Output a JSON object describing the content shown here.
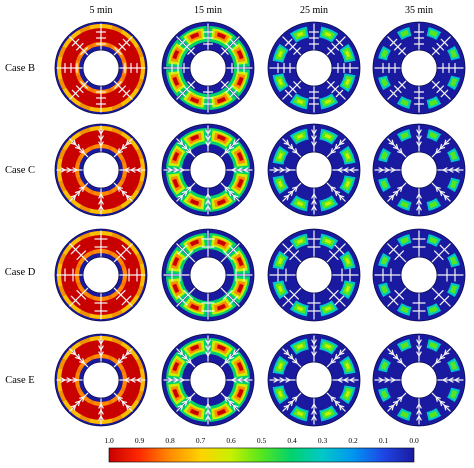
{
  "columns": [
    "5 min",
    "15 min",
    "25 min",
    "35 min"
  ],
  "rows": [
    "Case B",
    "Case C",
    "Case D",
    "Case E"
  ],
  "colorbar": {
    "ticks": [
      "1.0",
      "0.9",
      "0.8",
      "0.7",
      "0.6",
      "0.5",
      "0.4",
      "0.3",
      "0.2",
      "0.1",
      "0.0"
    ],
    "colors": [
      "#c80000",
      "#ff2a00",
      "#ff8c00",
      "#ffd200",
      "#c8f000",
      "#55e61e",
      "#00d26e",
      "#00c8c8",
      "#0096f0",
      "#1e46e6",
      "#1a1aa0"
    ]
  },
  "colors": {
    "solid": "#1a1aa0",
    "fin": "#f4f4f4",
    "inner_hole": "#ffffff"
  },
  "cells": [
    [
      {
        "fin_type": "tree",
        "melt": "early"
      },
      {
        "fin_type": "tree",
        "melt": "mid"
      },
      {
        "fin_type": "tree",
        "melt": "late"
      },
      {
        "fin_type": "tree",
        "melt": "final"
      }
    ],
    [
      {
        "fin_type": "tree-x",
        "melt": "early"
      },
      {
        "fin_type": "tree-x",
        "melt": "mid"
      },
      {
        "fin_type": "tree-x",
        "melt": "late"
      },
      {
        "fin_type": "tree-x",
        "melt": "final"
      }
    ],
    [
      {
        "fin_type": "cross",
        "melt": "early"
      },
      {
        "fin_type": "cross",
        "melt": "mid"
      },
      {
        "fin_type": "cross",
        "melt": "late"
      },
      {
        "fin_type": "cross",
        "melt": "final"
      }
    ],
    [
      {
        "fin_type": "tree-x",
        "melt": "early"
      },
      {
        "fin_type": "tree-x",
        "melt": "mid"
      },
      {
        "fin_type": "tree-x",
        "melt": "late"
      },
      {
        "fin_type": "tree-x",
        "melt": "final"
      }
    ]
  ]
}
